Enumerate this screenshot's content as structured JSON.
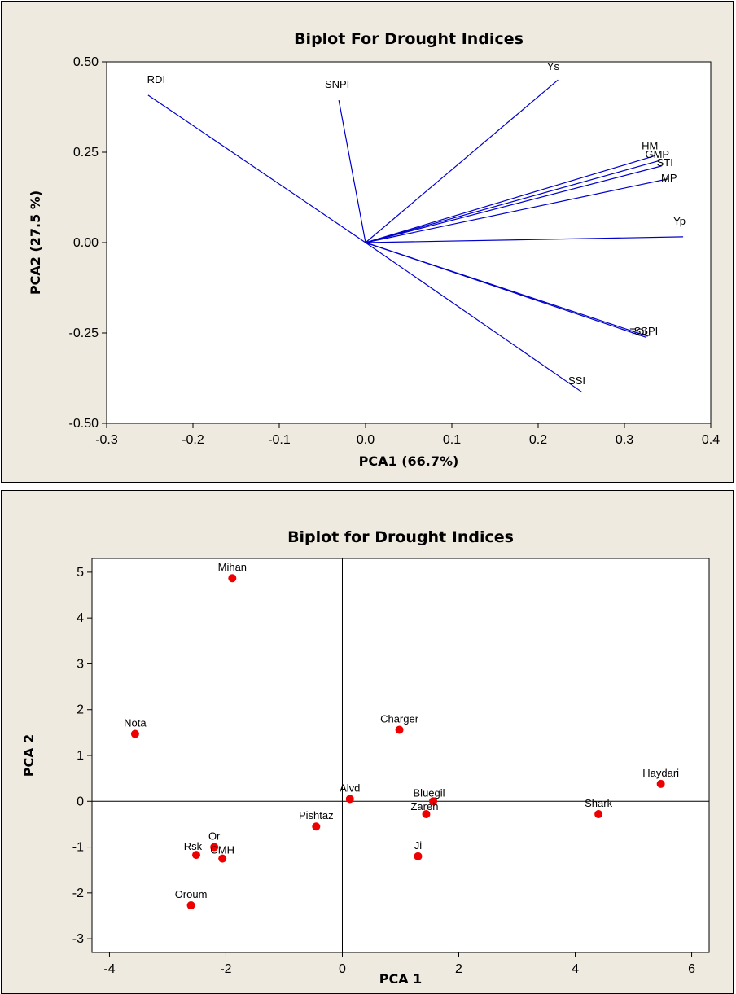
{
  "chart_data": [
    {
      "type": "loading-plot",
      "title": "Biplot For Drought Indices",
      "xlabel": "PCA1 (66.7%)",
      "ylabel": "PCA2 (27.5 %)",
      "xlim": [
        -0.3,
        0.4
      ],
      "ylim": [
        -0.5,
        0.5
      ],
      "xticks": [
        "-0.3",
        "-0.2",
        "-0.1",
        "0.0",
        "0.1",
        "0.2",
        "0.3",
        "0.4"
      ],
      "yticks": [
        "-0.50",
        "-0.25",
        "0.00",
        "0.25",
        "0.50"
      ],
      "color": "#0000cc",
      "vectors": [
        {
          "name": "RDI",
          "x": -0.252,
          "y": 0.408
        },
        {
          "name": "SNPI",
          "x": -0.031,
          "y": 0.394
        },
        {
          "name": "Ys",
          "x": 0.223,
          "y": 0.45
        },
        {
          "name": "HM",
          "x": 0.335,
          "y": 0.24
        },
        {
          "name": "GMP",
          "x": 0.341,
          "y": 0.227
        },
        {
          "name": "STI",
          "x": 0.343,
          "y": 0.212
        },
        {
          "name": "MP",
          "x": 0.35,
          "y": 0.176
        },
        {
          "name": "Yp",
          "x": 0.368,
          "y": 0.016
        },
        {
          "name": "TOL",
          "x": 0.325,
          "y": -0.262
        },
        {
          "name": "SSPI",
          "x": 0.327,
          "y": -0.259
        },
        {
          "name": "SSI",
          "x": 0.251,
          "y": -0.414
        }
      ]
    },
    {
      "type": "scatter",
      "title": "Biplot for Drought Indices",
      "xlabel": "PCA 1",
      "ylabel": "PCA 2",
      "xlim": [
        -4.3,
        6.3
      ],
      "ylim": [
        -3.3,
        5.3
      ],
      "xticks": [
        "-4",
        "-2",
        "0",
        "2",
        "4",
        "6"
      ],
      "yticks": [
        "-3",
        "-2",
        "-1",
        "0",
        "1",
        "2",
        "3",
        "4",
        "5"
      ],
      "color": "#ee0000",
      "points": [
        {
          "name": "Mihan",
          "x": -1.89,
          "y": 4.87
        },
        {
          "name": "Nota",
          "x": -3.56,
          "y": 1.47
        },
        {
          "name": "Charger",
          "x": 0.98,
          "y": 1.56
        },
        {
          "name": "Haydari",
          "x": 5.47,
          "y": 0.38
        },
        {
          "name": "Alvd",
          "x": 0.13,
          "y": 0.05
        },
        {
          "name": "Bluegil",
          "x": 1.56,
          "y": 0.0
        },
        {
          "name": "Zareh",
          "x": 1.44,
          "y": -0.28
        },
        {
          "name": "Shark",
          "x": 4.4,
          "y": -0.28
        },
        {
          "name": "Pishtaz",
          "x": -0.45,
          "y": -0.55
        },
        {
          "name": "Ji",
          "x": 1.3,
          "y": -1.2
        },
        {
          "name": "Rsk",
          "x": -2.51,
          "y": -1.17
        },
        {
          "name": "Or",
          "x": -2.2,
          "y": -1.0
        },
        {
          "name": "CMH",
          "x": -2.06,
          "y": -1.25
        },
        {
          "name": "Oroum",
          "x": -2.6,
          "y": -2.27
        }
      ]
    }
  ]
}
